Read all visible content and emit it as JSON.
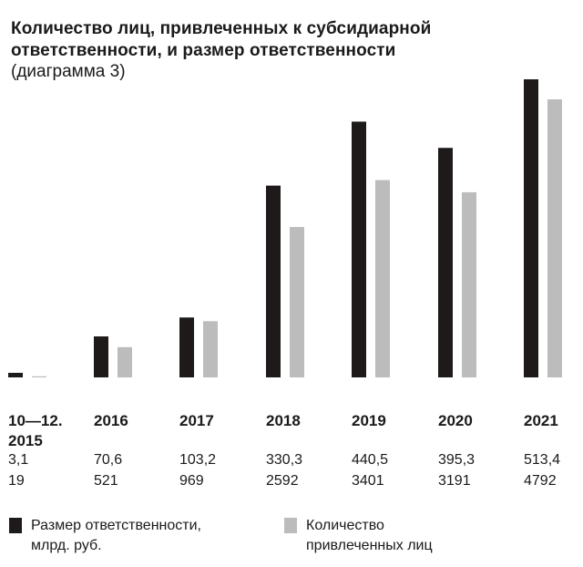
{
  "title": {
    "line1": "Количество лиц, привлеченных к субсидиарной",
    "line2": "ответственности, и размер ответственности",
    "subtitle": "(диаграмма 3)"
  },
  "colors": {
    "liability": "#1f1a1a",
    "persons": "#bcbcbc"
  },
  "legend": {
    "liability": [
      "Размер ответственности,",
      "млрд. руб."
    ],
    "persons": [
      "Количество",
      "привлеченных лиц"
    ]
  },
  "chart_data": {
    "type": "bar",
    "categories": [
      [
        "10—12.",
        "2015"
      ],
      [
        "2016"
      ],
      [
        "2017"
      ],
      [
        "2018"
      ],
      [
        "2019"
      ],
      [
        "2020"
      ],
      [
        "2021"
      ]
    ],
    "value_rows": [
      [
        "3,1",
        "70,6",
        "103,2",
        "330,3",
        "440,5",
        "395,3",
        "513,4"
      ],
      [
        "19",
        "521",
        "969",
        "2592",
        "3401",
        "3191",
        "4792"
      ]
    ],
    "series": [
      {
        "name": "Размер ответственности, млрд. руб.",
        "values": [
          3.1,
          70.6,
          103.2,
          330.3,
          440.5,
          395.3,
          513.4
        ]
      },
      {
        "name": "Количество привлеченных лиц",
        "values": [
          19,
          521,
          969,
          2592,
          3401,
          3191,
          4792
        ]
      }
    ],
    "axes": "none",
    "grid": false,
    "legend_position": "bottom"
  }
}
